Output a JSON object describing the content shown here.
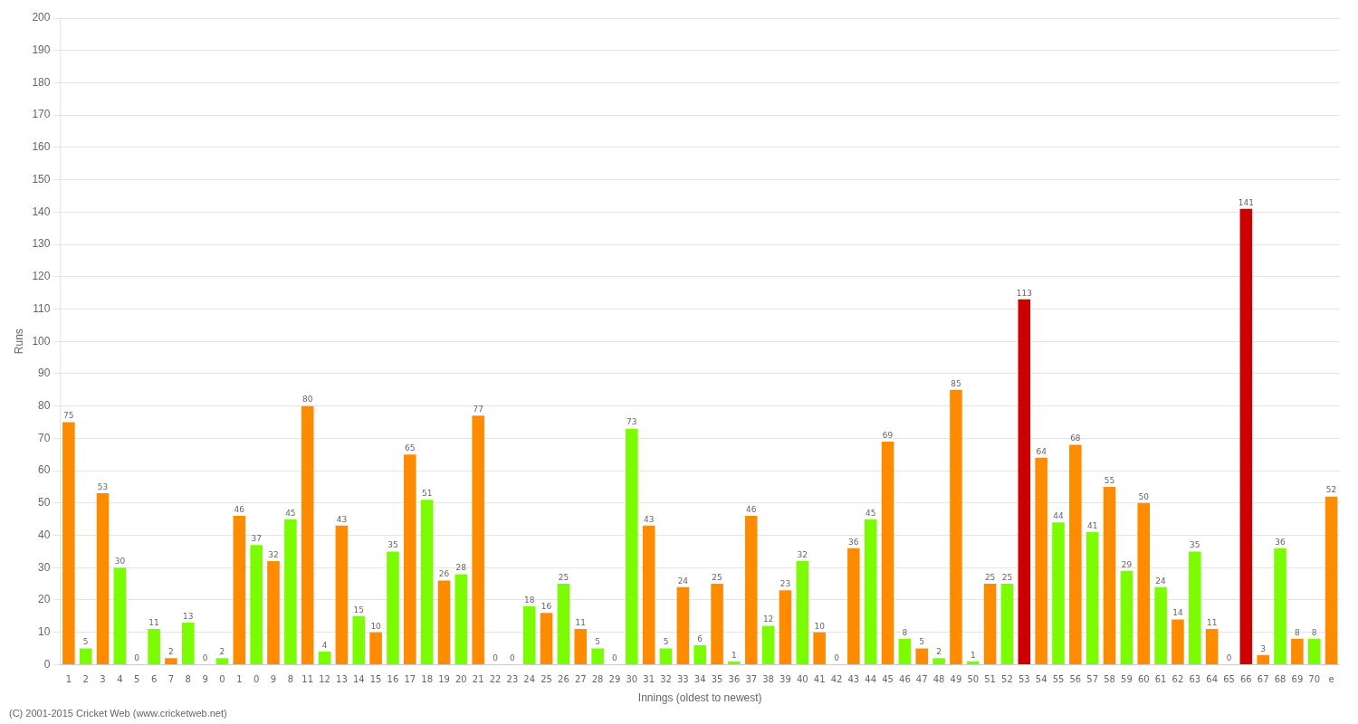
{
  "chart_data": {
    "type": "bar",
    "xlabel": "Innings (oldest to newest)",
    "ylabel": "Runs",
    "annotations": [
      "(C) 2001-2015 Cricket Web (www.cricketweb.net)"
    ],
    "categories": [
      "1",
      "2",
      "3",
      "4",
      "5",
      "6",
      "7",
      "8",
      "9",
      "0",
      "1",
      "0",
      "9",
      "8",
      "11",
      "12",
      "13",
      "14",
      "15",
      "16",
      "17",
      "18",
      "19",
      "20",
      "21",
      "22",
      "23",
      "24",
      "25",
      "26",
      "27",
      "28",
      "29",
      "30",
      "31",
      "32",
      "33",
      "34",
      "35",
      "36",
      "37",
      "38",
      "39",
      "40",
      "41",
      "42",
      "43",
      "44",
      "45",
      "46",
      "47",
      "48",
      "49",
      "50",
      "51",
      "52",
      "53",
      "54",
      "55",
      "56",
      "57",
      "58",
      "59",
      "60",
      "61",
      "62",
      "63",
      "64",
      "65",
      "66",
      "67",
      "68",
      "69",
      "70",
      "e"
    ],
    "values": [
      75,
      5,
      53,
      30,
      0,
      11,
      2,
      13,
      0,
      2,
      46,
      37,
      32,
      45,
      80,
      4,
      43,
      15,
      10,
      35,
      65,
      51,
      26,
      28,
      77,
      0,
      0,
      18,
      16,
      25,
      11,
      5,
      0,
      73,
      43,
      5,
      24,
      6,
      25,
      1,
      46,
      12,
      23,
      32,
      10,
      0,
      36,
      45,
      69,
      8,
      5,
      2,
      85,
      1,
      25,
      25,
      113,
      64,
      44,
      68,
      41,
      55,
      29,
      50,
      24,
      14,
      35,
      11,
      0,
      141,
      3,
      36,
      8,
      8,
      52
    ],
    "colors": [
      "#ff8c00",
      "#7cfc00",
      "#ff8c00",
      "#7cfc00",
      "#ff8c00",
      "#7cfc00",
      "#ff8c00",
      "#7cfc00",
      "#ff8c00",
      "#7cfc00",
      "#ff8c00",
      "#7cfc00",
      "#ff8c00",
      "#7cfc00",
      "#ff8c00",
      "#7cfc00",
      "#ff8c00",
      "#7cfc00",
      "#ff8c00",
      "#7cfc00",
      "#ff8c00",
      "#7cfc00",
      "#ff8c00",
      "#7cfc00",
      "#ff8c00",
      "#7cfc00",
      "#ff8c00",
      "#7cfc00",
      "#ff8c00",
      "#7cfc00",
      "#ff8c00",
      "#7cfc00",
      "#ff8c00",
      "#7cfc00",
      "#ff8c00",
      "#7cfc00",
      "#ff8c00",
      "#7cfc00",
      "#ff8c00",
      "#7cfc00",
      "#ff8c00",
      "#7cfc00",
      "#ff8c00",
      "#7cfc00",
      "#ff8c00",
      "#7cfc00",
      "#ff8c00",
      "#7cfc00",
      "#ff8c00",
      "#7cfc00",
      "#ff8c00",
      "#7cfc00",
      "#ff8c00",
      "#7cfc00",
      "#ff8c00",
      "#7cfc00",
      "#cc0000",
      "#ff8c00",
      "#7cfc00",
      "#ff8c00",
      "#7cfc00",
      "#ff8c00",
      "#7cfc00",
      "#ff8c00",
      "#7cfc00",
      "#ff8c00",
      "#7cfc00",
      "#ff8c00",
      "#7cfc00",
      "#cc0000",
      "#ff8c00",
      "#7cfc00",
      "#ff8c00",
      "#7cfc00",
      "#ff8c00"
    ],
    "ylim": [
      0,
      200
    ],
    "yticks": [
      0,
      10,
      20,
      30,
      40,
      50,
      60,
      70,
      80,
      90,
      100,
      110,
      120,
      130,
      140,
      150,
      160,
      170,
      180,
      190,
      200
    ],
    "grid": true,
    "data_labels": true
  }
}
